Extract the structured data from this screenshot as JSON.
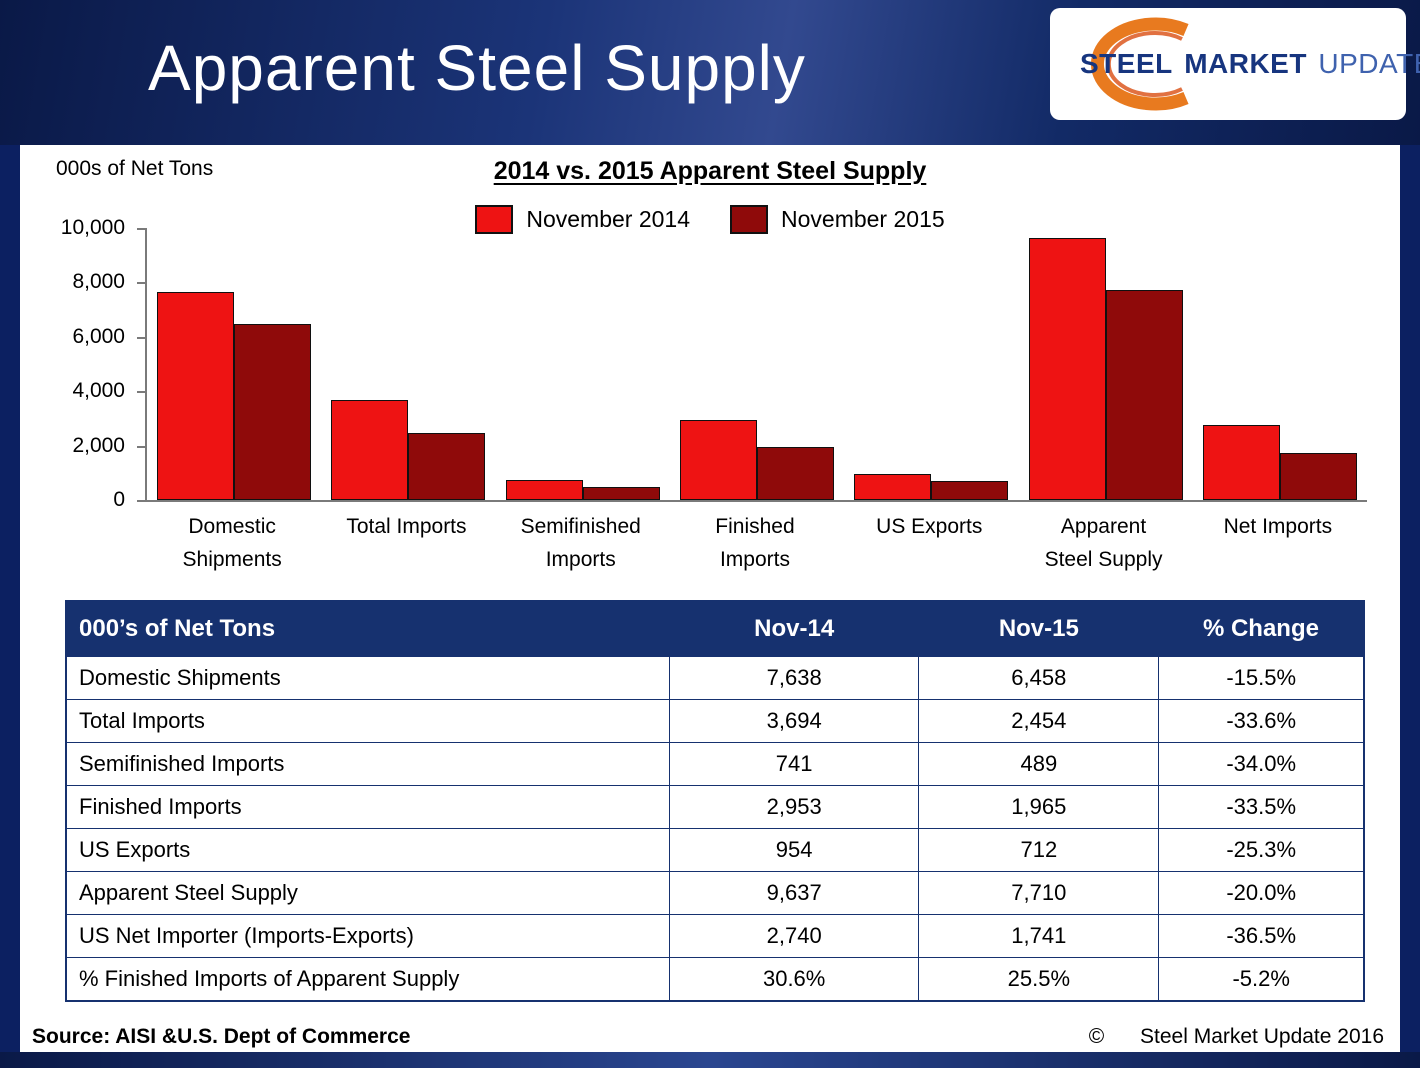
{
  "header": {
    "title": "Apparent Steel Supply",
    "logo": {
      "steel": "STEEL",
      "market": "MARKET",
      "update": "UPDATE"
    }
  },
  "chart_data": {
    "type": "bar",
    "title": "2014 vs. 2015 Apparent Steel Supply",
    "ylabel": "000s of Net Tons",
    "categories": [
      "Domestic\nShipments",
      "Total Imports",
      "Semifinished\nImports",
      "Finished\nImports",
      "US Exports",
      "Apparent\nSteel Supply",
      "Net Imports"
    ],
    "series": [
      {
        "name": "November 2014",
        "color": "#ee1313",
        "values": [
          7638,
          3694,
          741,
          2953,
          954,
          9637,
          2740
        ]
      },
      {
        "name": "November 2015",
        "color": "#8f0a0a",
        "values": [
          6458,
          2454,
          489,
          1965,
          712,
          7710,
          1741
        ]
      }
    ],
    "ylim": [
      0,
      10000
    ],
    "yticks": [
      0,
      2000,
      4000,
      6000,
      8000,
      10000
    ],
    "ytick_labels": [
      "0",
      "2,000",
      "4,000",
      "6,000",
      "8,000",
      "10,000"
    ],
    "grid": false,
    "legend_position": "top-center"
  },
  "table": {
    "headers": [
      "000’s of Net Tons",
      "Nov-14",
      "Nov-15",
      "% Change"
    ],
    "rows": [
      [
        "Domestic Shipments",
        "7,638",
        "6,458",
        "-15.5%"
      ],
      [
        "Total Imports",
        "3,694",
        "2,454",
        "-33.6%"
      ],
      [
        "Semifinished Imports",
        "741",
        "489",
        "-34.0%"
      ],
      [
        "Finished Imports",
        "2,953",
        "1,965",
        "-33.5%"
      ],
      [
        "US Exports",
        "954",
        "712",
        "-25.3%"
      ],
      [
        "Apparent Steel Supply",
        "9,637",
        "7,710",
        "-20.0%"
      ],
      [
        "US Net Importer (Imports-Exports)",
        "2,740",
        "1,741",
        "-36.5%"
      ],
      [
        "% Finished Imports of Apparent Supply",
        "30.6%",
        "25.5%",
        "-5.2%"
      ]
    ]
  },
  "footer": {
    "source": "Source:  AISI &U.S. Dept of Commerce",
    "copyright_symbol": "©",
    "copyright_text": "Steel Market Update 2016"
  },
  "colors": {
    "navy": "#16316f",
    "red_2014": "#ee1313",
    "red_2015": "#8f0a0a",
    "logo_orange": "#e87a1f"
  }
}
